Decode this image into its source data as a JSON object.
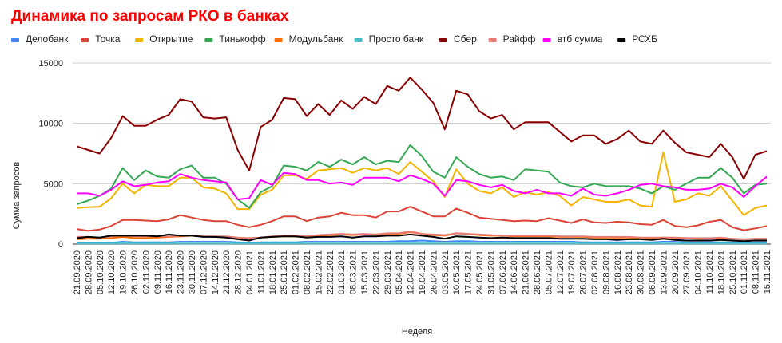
{
  "chart_data": {
    "type": "line",
    "title": "Динамика по запросам РКО в банках",
    "title_color": "#ff0000",
    "xlabel": "Неделя",
    "ylabel": "Сумма запросов",
    "ylim": [
      0,
      15000
    ],
    "yticks": [
      "0",
      "5000",
      "10000",
      "15000"
    ],
    "grid": "horizontal",
    "legend_position": "top",
    "categories": [
      "21.09.2020",
      "28.09.2020",
      "05.10.2020",
      "12.10.2020",
      "19.10.2020",
      "26.10.2020",
      "02.11.2020",
      "09.11.2020",
      "16.11.2020",
      "23.11.2020",
      "30.11.2020",
      "07.12.2020",
      "14.12.2020",
      "21.12.2020",
      "28.12.2020",
      "04.01.2021",
      "11.01.2021",
      "18.01.2021",
      "25.01.2021",
      "01.02.2021",
      "08.02.2021",
      "15.02.2021",
      "22.02.2021",
      "01.03.2021",
      "08.03.2021",
      "15.03.2021",
      "22.03.2021",
      "29.03.2021",
      "05.04.2021",
      "12.04.2021",
      "19.04.2021",
      "26.04.2021",
      "03.05.2021",
      "10.05.2021",
      "17.05.2021",
      "24.05.2021",
      "31.05.2021",
      "07.06.2021",
      "14.06.2021",
      "21.06.2021",
      "28.06.2021",
      "05.07.2021",
      "12.07.2021",
      "19.07.2021",
      "26.07.2021",
      "02.08.2021",
      "09.08.2021",
      "16.08.2021",
      "23.08.2021",
      "30.08.2021",
      "06.09.2021",
      "13.09.2021",
      "20.09.2021",
      "27.09.2021",
      "04.10.2021",
      "11.10.2021",
      "18.10.2021",
      "25.10.2021",
      "01.11.2021",
      "08.11.2021",
      "15.11.2021"
    ],
    "xtick_labels": [
      "21.09.2020",
      "28.09.2020",
      "05.10.2020",
      "12.10.2020",
      "19.10.2020",
      "26.10.2020",
      "02.11.2020",
      "09.11.2020",
      "16.11.2020",
      "23.11.2020",
      "30.11.2020",
      "07.12.2020",
      "14.12.2020",
      "21.12.2020",
      "28.12.2020",
      "04.01.2021",
      "11.01.2021",
      "18.01.2021",
      "25.01.2021",
      "01.02.2021",
      "08.02.2021",
      "15.02.2021",
      "22.02.2021",
      "01.03.2021",
      "08.03.2021",
      "15.03.2021",
      "22.03.2021",
      "29.03.2021",
      "05.04.2021",
      "12.04.2021",
      "19.04.2021",
      "26.04.2021",
      "03.05.2021",
      "10.05.2021",
      "17.05.2021",
      "24.05.2021",
      "31.05.2021",
      "07.06.2021",
      "14.06.2021",
      "21.06.2021",
      "28.06.2021",
      "05.07.2021",
      "12.07.2021",
      "19.07.2021",
      "26.07.2021",
      "02.08.2021",
      "09.08.2021",
      "16.08.2021",
      "23.08.2021",
      "30.08.2021",
      "06.09.2021",
      "13.09.2021",
      "20.09.2021",
      "27.09.2021",
      "04.10.2021",
      "11.10.2021",
      "18.10.2021",
      "25.10.2021",
      "01.11.2021",
      "08.11.2021",
      "15.11.2021"
    ],
    "series": [
      {
        "name": "Делобанк",
        "color": "#4285f4",
        "values": [
          100,
          100,
          100,
          100,
          200,
          150,
          150,
          150,
          150,
          200,
          200,
          200,
          200,
          200,
          150,
          100,
          150,
          150,
          150,
          150,
          200,
          200,
          200,
          200,
          200,
          200,
          200,
          200,
          250,
          250,
          300,
          250,
          200,
          250,
          250,
          200,
          200,
          200,
          200,
          200,
          200,
          200,
          200,
          200,
          150,
          150,
          150,
          150,
          150,
          150,
          150,
          200,
          200,
          150,
          150,
          150,
          150,
          150,
          150,
          150,
          150
        ]
      },
      {
        "name": "Точка",
        "color": "#db4437",
        "values": [
          1250,
          1100,
          1200,
          1500,
          2000,
          2000,
          1950,
          1900,
          2050,
          2400,
          2200,
          2000,
          1900,
          1900,
          1600,
          1400,
          1600,
          1900,
          2300,
          2300,
          1900,
          2200,
          2300,
          2600,
          2400,
          2400,
          2200,
          2700,
          2700,
          3100,
          2700,
          2300,
          2300,
          2950,
          2600,
          2200,
          2100,
          2000,
          1900,
          1950,
          1900,
          2150,
          1950,
          1750,
          2050,
          1800,
          1750,
          1850,
          1800,
          1650,
          1600,
          2000,
          1500,
          1400,
          1550,
          1850,
          2000,
          1400,
          1150,
          1300,
          1500
        ]
      },
      {
        "name": "Открытие",
        "color": "#f4b400",
        "values": [
          3000,
          3050,
          3100,
          3800,
          5000,
          4200,
          4900,
          4800,
          4800,
          5500,
          5500,
          4700,
          4600,
          4200,
          2900,
          2900,
          4100,
          4500,
          5700,
          5700,
          5400,
          6100,
          6200,
          6300,
          5900,
          6300,
          6100,
          6300,
          5800,
          6800,
          6000,
          5200,
          3900,
          6200,
          5000,
          4400,
          4200,
          4700,
          3900,
          4300,
          4100,
          4300,
          4000,
          3200,
          3900,
          3700,
          3500,
          3500,
          3700,
          3200,
          3100,
          7600,
          3500,
          3700,
          4200,
          4000,
          4800,
          3600,
          2400,
          3000,
          3200
        ]
      },
      {
        "name": "Тинькофф",
        "color": "#34a853",
        "values": [
          3300,
          3600,
          4000,
          4600,
          6300,
          5300,
          6100,
          5600,
          5500,
          6200,
          6500,
          5500,
          5500,
          5000,
          3700,
          3000,
          4300,
          4800,
          6500,
          6400,
          6100,
          6800,
          6400,
          7000,
          6600,
          7200,
          6600,
          6900,
          6800,
          8200,
          7300,
          6000,
          5500,
          7200,
          6400,
          5800,
          5500,
          5600,
          5300,
          6200,
          6100,
          6000,
          5100,
          4800,
          4700,
          5000,
          4800,
          4800,
          4800,
          4600,
          4200,
          4800,
          4500,
          5000,
          5500,
          5500,
          6300,
          5500,
          4200,
          4900,
          5000
        ]
      },
      {
        "name": "Модульбанк",
        "color": "#ff6d01",
        "values": [
          400,
          450,
          450,
          500,
          600,
          500,
          500,
          550,
          600,
          650,
          700,
          650,
          600,
          600,
          500,
          400,
          550,
          600,
          650,
          650,
          650,
          700,
          750,
          800,
          750,
          800,
          800,
          850,
          850,
          1000,
          850,
          750,
          700,
          900,
          850,
          750,
          700,
          700,
          650,
          650,
          650,
          650,
          600,
          600,
          600,
          550,
          550,
          550,
          550,
          500,
          500,
          550,
          500,
          500,
          450,
          450,
          500,
          450,
          400,
          450,
          450
        ]
      },
      {
        "name": "Просто банк",
        "color": "#46bdc6",
        "values": [
          50,
          50,
          50,
          50,
          50,
          50,
          50,
          50,
          50,
          50,
          50,
          50,
          50,
          50,
          50,
          50,
          50,
          50,
          50,
          50,
          50,
          50,
          50,
          50,
          50,
          50,
          50,
          50,
          50,
          50,
          50,
          50,
          50,
          50,
          50,
          50,
          50,
          50,
          50,
          50,
          50,
          50,
          50,
          50,
          50,
          50,
          50,
          50,
          50,
          50,
          50,
          50,
          50,
          50,
          50,
          50,
          50,
          50,
          50,
          50,
          50
        ]
      },
      {
        "name": "Сбер",
        "color": "#8b0000",
        "values": [
          8100,
          7800,
          7500,
          8800,
          10600,
          9800,
          9800,
          10300,
          10700,
          12000,
          11800,
          10500,
          10400,
          10500,
          7800,
          6100,
          9700,
          10300,
          12100,
          12000,
          10600,
          11600,
          10700,
          11900,
          11200,
          12200,
          11600,
          13100,
          12700,
          13800,
          12800,
          11700,
          9500,
          12700,
          12400,
          11000,
          10400,
          10700,
          9500,
          10100,
          10100,
          10100,
          9300,
          8500,
          9000,
          9000,
          8300,
          8700,
          9400,
          8500,
          8300,
          9400,
          8400,
          7600,
          7400,
          7200,
          8300,
          7200,
          5400,
          7400,
          7700
        ]
      },
      {
        "name": "Райфф",
        "color": "#e67c73",
        "values": [
          600,
          600,
          550,
          650,
          700,
          650,
          650,
          650,
          650,
          700,
          700,
          650,
          650,
          650,
          550,
          500,
          550,
          650,
          700,
          700,
          650,
          750,
          800,
          850,
          800,
          850,
          800,
          900,
          900,
          1050,
          850,
          800,
          750,
          900,
          850,
          800,
          750,
          700,
          700,
          700,
          700,
          700,
          650,
          650,
          650,
          600,
          600,
          600,
          600,
          550,
          550,
          550,
          550,
          500,
          500,
          500,
          550,
          450,
          400,
          450,
          450
        ]
      },
      {
        "name": "втб сумма",
        "color": "#ff00ff",
        "values": [
          4200,
          4200,
          4000,
          4500,
          5200,
          4800,
          4900,
          5100,
          5200,
          5800,
          5500,
          5300,
          5200,
          5100,
          3700,
          3800,
          5300,
          4900,
          5900,
          5800,
          5300,
          5300,
          5000,
          5100,
          4900,
          5500,
          5500,
          5500,
          5200,
          5700,
          5400,
          5000,
          4000,
          5300,
          5200,
          4900,
          4700,
          4900,
          4400,
          4200,
          4500,
          4200,
          4200,
          4000,
          4600,
          4100,
          4000,
          4200,
          4500,
          4900,
          5000,
          4800,
          4700,
          4500,
          4500,
          4600,
          5000,
          4700,
          3900,
          4800,
          5600
        ]
      },
      {
        "name": "РСХБ",
        "color": "#000000",
        "values": [
          500,
          600,
          550,
          700,
          700,
          700,
          700,
          650,
          800,
          700,
          700,
          600,
          600,
          550,
          400,
          300,
          550,
          600,
          650,
          650,
          550,
          600,
          600,
          650,
          550,
          650,
          650,
          700,
          700,
          800,
          700,
          600,
          450,
          650,
          600,
          550,
          500,
          550,
          500,
          500,
          500,
          500,
          450,
          450,
          450,
          400,
          400,
          350,
          400,
          400,
          350,
          450,
          350,
          300,
          300,
          300,
          350,
          300,
          250,
          300,
          300
        ]
      }
    ]
  }
}
